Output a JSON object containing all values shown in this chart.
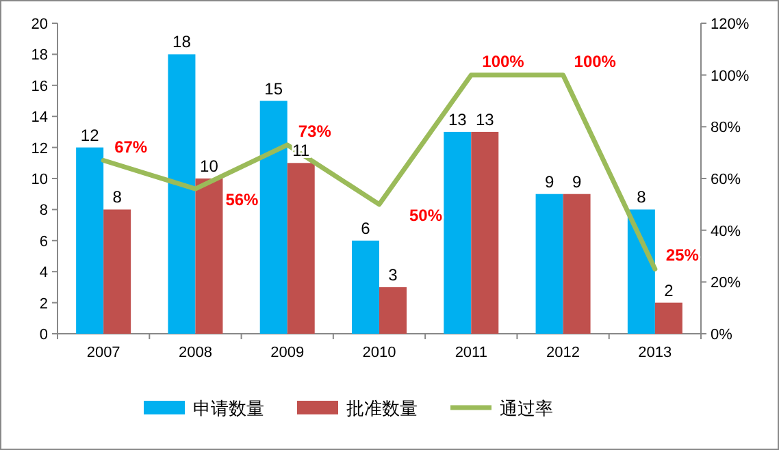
{
  "chart_data": {
    "type": "bar",
    "categories": [
      "2007",
      "2008",
      "2009",
      "2010",
      "2011",
      "2012",
      "2013"
    ],
    "series": [
      {
        "name": "申请数量",
        "color": "#00b0f0",
        "values": [
          12,
          18,
          15,
          6,
          13,
          9,
          8
        ],
        "value_labels": [
          "12",
          "18",
          "15",
          "6",
          "13",
          "9",
          "8"
        ]
      },
      {
        "name": "批准数量",
        "color": "#c0504d",
        "values": [
          8,
          10,
          11,
          3,
          13,
          9,
          2
        ],
        "value_labels": [
          "8",
          "10",
          "11",
          "3",
          "13",
          "9",
          "2"
        ]
      },
      {
        "name": "通过率",
        "type": "line",
        "axis": "y2",
        "color": "#9bbb59",
        "values": [
          67,
          56,
          73,
          50,
          100,
          100,
          25
        ],
        "value_labels": [
          "67%",
          "56%",
          "73%",
          "50%",
          "100%",
          "100%",
          "25%"
        ]
      }
    ],
    "ylim": [
      0,
      20
    ],
    "yticks": [
      0,
      2,
      4,
      6,
      8,
      10,
      12,
      14,
      16,
      18,
      20
    ],
    "y2lim": [
      0,
      120
    ],
    "y2ticks": [
      {
        "value": 0,
        "label": "0%"
      },
      {
        "value": 20,
        "label": "20%"
      },
      {
        "value": 40,
        "label": "40%"
      },
      {
        "value": 60,
        "label": "60%"
      },
      {
        "value": 80,
        "label": "80%"
      },
      {
        "value": 100,
        "label": "100%"
      },
      {
        "value": 120,
        "label": "120%"
      }
    ],
    "legend": "bottom"
  }
}
